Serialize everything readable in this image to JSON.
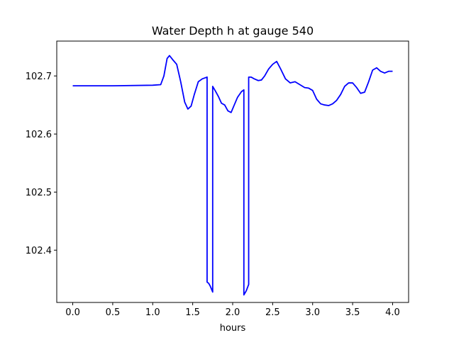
{
  "chart_data": {
    "type": "line",
    "title": "Water Depth h at gauge 540",
    "xlabel": "hours",
    "ylabel": "",
    "xlim": [
      -0.2,
      4.2
    ],
    "ylim": [
      102.31,
      102.76
    ],
    "xticks": [
      0.0,
      0.5,
      1.0,
      1.5,
      2.0,
      2.5,
      3.0,
      3.5,
      4.0
    ],
    "xtick_labels": [
      "0.0",
      "0.5",
      "1.0",
      "1.5",
      "2.0",
      "2.5",
      "3.0",
      "3.5",
      "4.0"
    ],
    "yticks": [
      102.4,
      102.5,
      102.6,
      102.7
    ],
    "ytick_labels": [
      "102.4",
      "102.5",
      "102.6",
      "102.7"
    ],
    "grid": false,
    "series": [
      {
        "color": "#0000ff",
        "x": [
          0.0,
          0.5,
          1.0,
          1.1,
          1.14,
          1.18,
          1.21,
          1.25,
          1.3,
          1.35,
          1.4,
          1.44,
          1.48,
          1.52,
          1.57,
          1.62,
          1.66,
          1.68,
          1.68,
          1.7,
          1.72,
          1.75,
          1.75,
          1.78,
          1.82,
          1.86,
          1.9,
          1.94,
          1.98,
          2.02,
          2.06,
          2.11,
          2.14,
          2.14,
          2.17,
          2.2,
          2.2,
          2.23,
          2.27,
          2.32,
          2.36,
          2.4,
          2.45,
          2.5,
          2.55,
          2.6,
          2.66,
          2.72,
          2.78,
          2.84,
          2.9,
          2.95,
          3.0,
          3.05,
          3.1,
          3.15,
          3.2,
          3.25,
          3.3,
          3.35,
          3.4,
          3.45,
          3.5,
          3.55,
          3.6,
          3.65,
          3.7,
          3.75,
          3.8,
          3.85,
          3.9,
          3.95,
          4.0
        ],
        "y": [
          102.683,
          102.683,
          102.684,
          102.685,
          102.7,
          102.73,
          102.735,
          102.728,
          102.72,
          102.69,
          102.655,
          102.643,
          102.648,
          102.668,
          102.69,
          102.695,
          102.697,
          102.698,
          102.345,
          102.343,
          102.338,
          102.328,
          102.682,
          102.675,
          102.665,
          102.653,
          102.65,
          102.64,
          102.637,
          102.65,
          102.663,
          102.673,
          102.676,
          102.323,
          102.33,
          102.341,
          102.698,
          102.698,
          102.695,
          102.692,
          102.693,
          102.7,
          102.712,
          102.72,
          102.725,
          102.712,
          102.695,
          102.688,
          102.69,
          102.685,
          102.68,
          102.679,
          102.675,
          102.66,
          102.652,
          102.65,
          102.649,
          102.652,
          102.658,
          102.668,
          102.682,
          102.688,
          102.688,
          102.68,
          102.67,
          102.672,
          102.69,
          102.71,
          102.714,
          102.708,
          102.705,
          102.708,
          102.708
        ]
      }
    ]
  }
}
